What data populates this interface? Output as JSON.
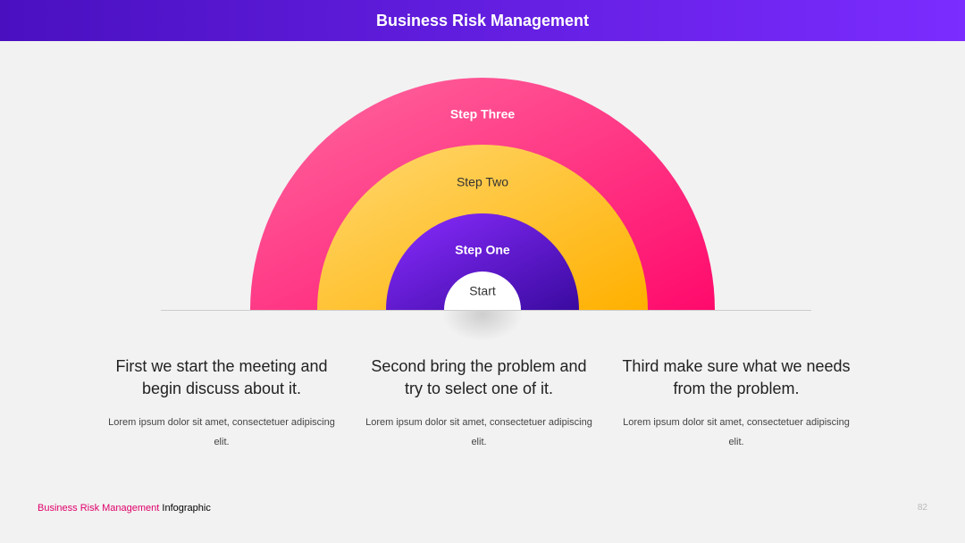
{
  "header": {
    "title": "Business Risk Management"
  },
  "arcs": {
    "three": "Step Three",
    "two": "Step Two",
    "one": "Step One",
    "start": "Start"
  },
  "columns": [
    {
      "title": "First we start the meeting and begin discuss about it.",
      "text": "Lorem ipsum dolor sit amet, consectetuer adipiscing elit."
    },
    {
      "title": "Second bring the problem and try to select one of it.",
      "text": "Lorem ipsum dolor sit amet, consectetuer adipiscing elit."
    },
    {
      "title": "Third make sure what we needs from the problem.",
      "text": "Lorem ipsum dolor sit amet, consectetuer adipiscing elit."
    }
  ],
  "footer": {
    "highlight": "Business Risk Management",
    "rest": "Infographic",
    "page": "82"
  }
}
